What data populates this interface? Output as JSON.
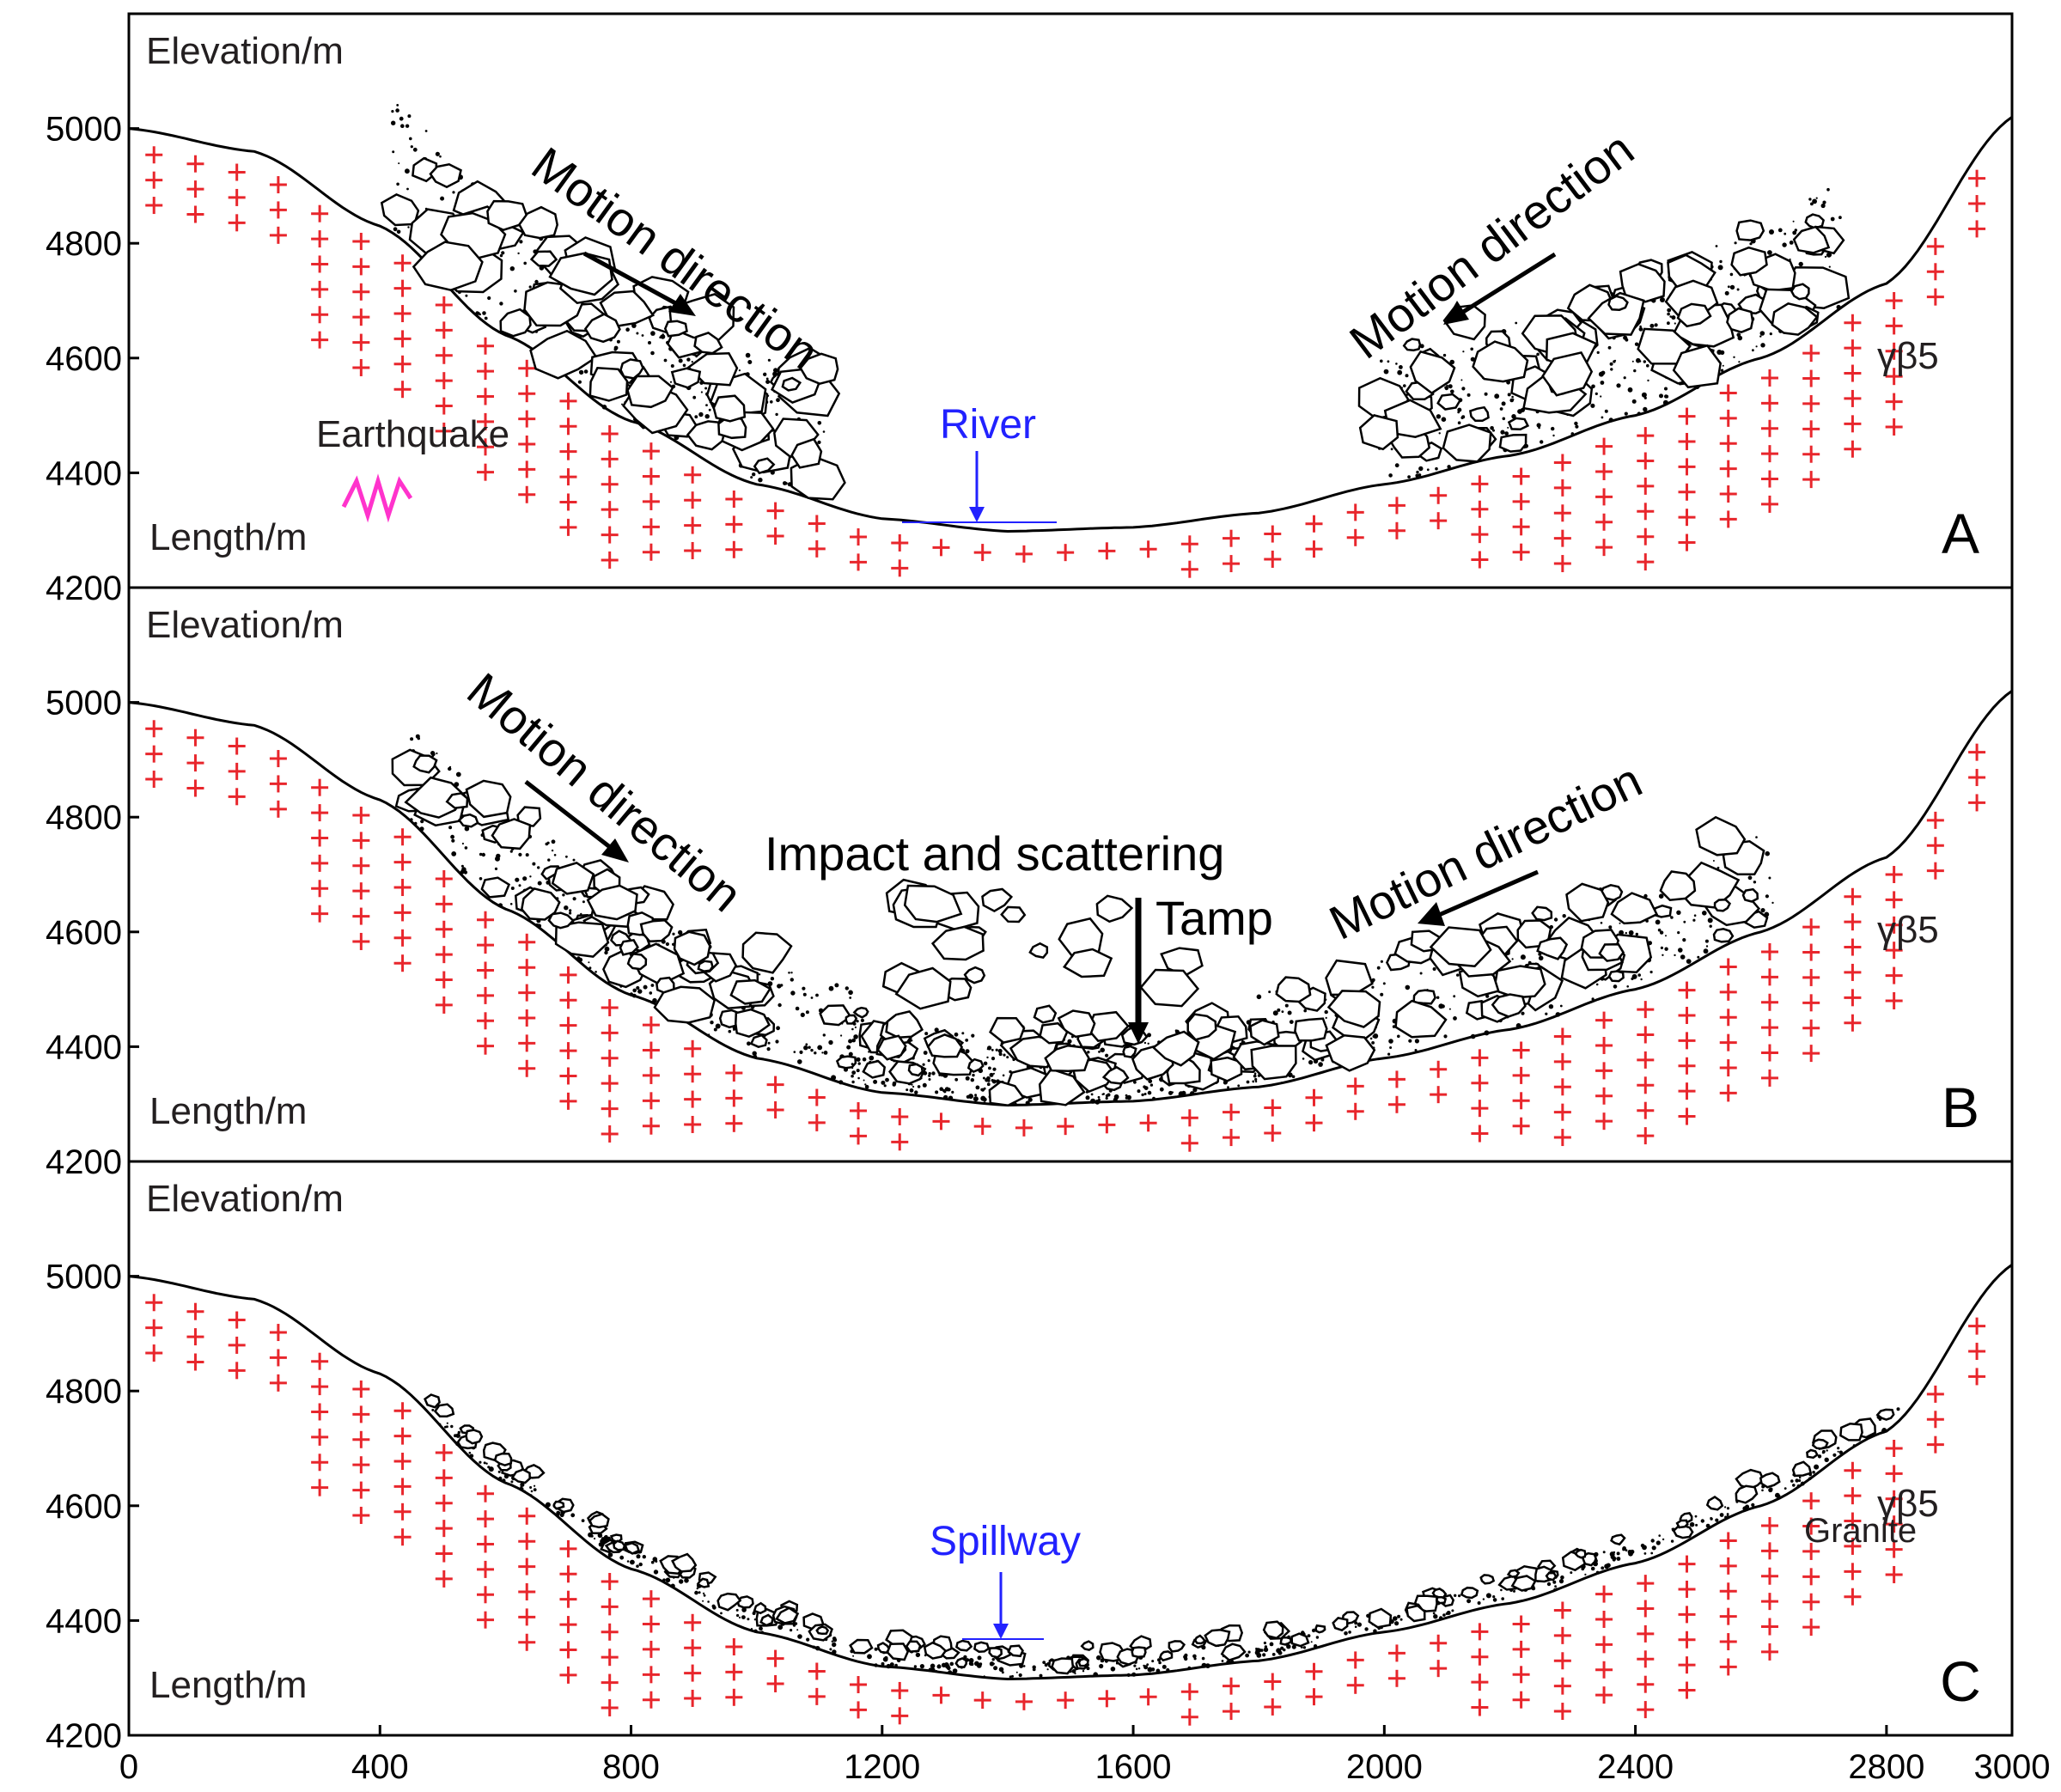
{
  "chart_data": {
    "type": "diagram",
    "description_labels": true,
    "x_axis": {
      "ticks": [
        0,
        400,
        800,
        1200,
        1600,
        2000,
        2400,
        2800,
        3000
      ],
      "range": [
        0,
        3000
      ]
    },
    "y_axis": {
      "ticks": [
        4200,
        4400,
        4600,
        4800,
        5000
      ],
      "range": [
        4200,
        5200
      ]
    },
    "terrain_profile": [
      [
        0,
        5000
      ],
      [
        200,
        4960
      ],
      [
        400,
        4830
      ],
      [
        600,
        4640
      ],
      [
        800,
        4490
      ],
      [
        1000,
        4380
      ],
      [
        1200,
        4320
      ],
      [
        1400,
        4298
      ],
      [
        1600,
        4305
      ],
      [
        1800,
        4330
      ],
      [
        2000,
        4380
      ],
      [
        2200,
        4430
      ],
      [
        2400,
        4500
      ],
      [
        2600,
        4600
      ],
      [
        2800,
        4730
      ],
      [
        3000,
        5020
      ]
    ],
    "panels": [
      {
        "id": "A",
        "panel_letter": "A",
        "elevation_label": "Elevation/m",
        "length_label": "Length/m",
        "motion_left": "Motion direction",
        "motion_right": "Motion direction",
        "earthquake": "Earthquake",
        "river": "River",
        "rock_symbol": "γβ5"
      },
      {
        "id": "B",
        "panel_letter": "B",
        "elevation_label": "Elevation/m",
        "length_label": "Length/m",
        "motion_left": "Motion direction",
        "motion_right": "Motion direction",
        "impact": "Impact and scattering",
        "tamp": "Tamp",
        "rock_symbol": "γβ5"
      },
      {
        "id": "C",
        "panel_letter": "C",
        "elevation_label": "Elevation/m",
        "length_label": "Length/m",
        "spillway": "Spillway",
        "rock_symbol": "γβ5",
        "rock_name": "Granite"
      }
    ]
  },
  "colors": {
    "granite_cross": "#e8262c",
    "water": "#2222ff",
    "earthquake": "#ff33cc"
  }
}
